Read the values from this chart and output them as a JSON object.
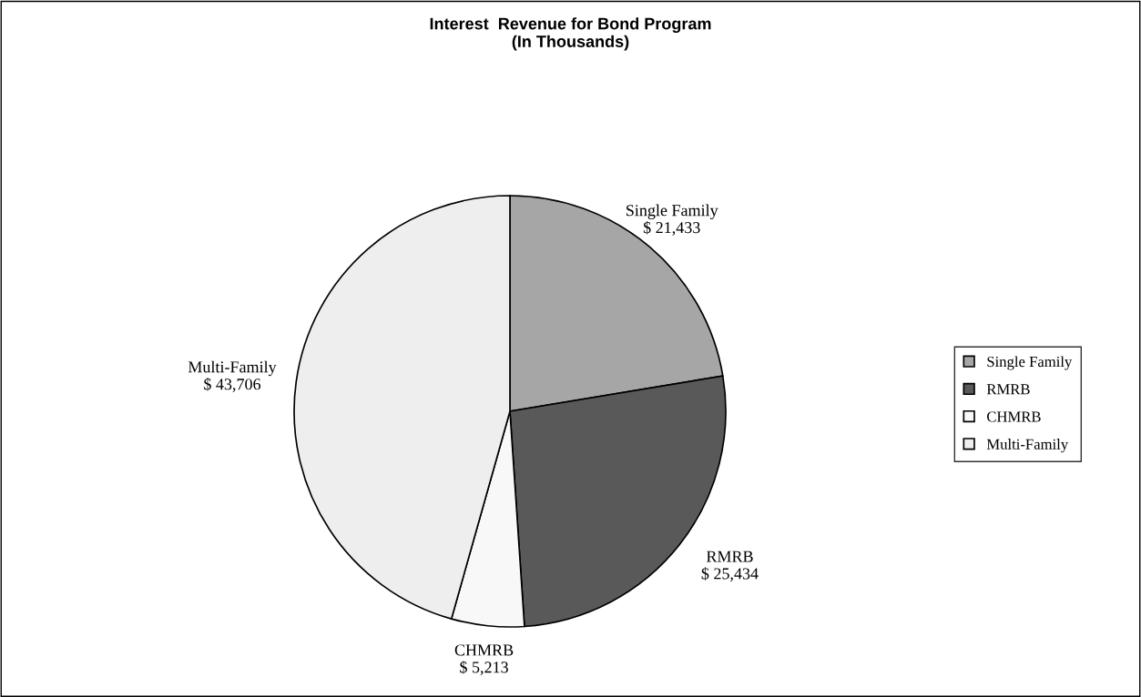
{
  "chart_data": {
    "type": "pie",
    "title": "Interest  Revenue for Bond Program\n(In Thousands)",
    "categories": [
      "Single Family",
      "RMRB",
      "CHMRB",
      "Multi-Family"
    ],
    "values": [
      21433,
      25434,
      5213,
      43706
    ],
    "colors": [
      "#a6a6a6",
      "#595959",
      "#f8f8f8",
      "#eeeeee"
    ],
    "value_labels": [
      "$ 21,433",
      "$ 25,434",
      "$ 5,213",
      "$ 43,706"
    ],
    "legend": "right"
  }
}
